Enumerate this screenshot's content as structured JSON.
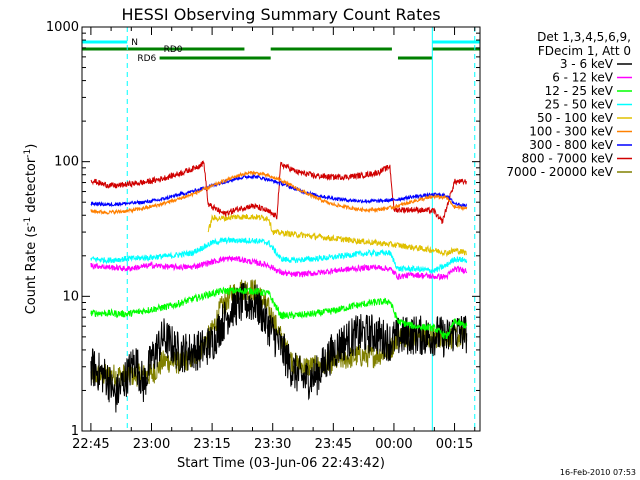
{
  "chart_data": {
    "type": "line",
    "title": "HESSI Observing Summary Count Rates",
    "xlabel": "Start Time (03-Jun-06 22:43:42)",
    "ylabel_main": "Count Rate (s",
    "ylabel_sup1": "-1",
    "ylabel_mid": " detector",
    "ylabel_sup2": "-1",
    "ylabel_end": ")",
    "yscale": "log",
    "ylim": [
      1,
      1000
    ],
    "xlim_minutes": [
      -2.2,
      96.3
    ],
    "x_tick_labels": [
      "22:45",
      "23:00",
      "23:15",
      "23:30",
      "23:45",
      "00:00",
      "00:15"
    ],
    "x_tick_minutes": [
      0,
      15,
      30,
      45,
      60,
      75,
      90
    ],
    "y_tick_labels": [
      "1",
      "10",
      "100",
      "1000"
    ],
    "y_tick_values": [
      1,
      10,
      100,
      1000
    ],
    "legend_header": [
      "Det 1,3,4,5,6,9,",
      "FDecim 1, Att 0"
    ],
    "legend_position": "right",
    "date_stamp": "16-Feb-2010 07:53",
    "flag_labels": {
      "n": "N",
      "rd0": "RD0",
      "rd6": "RD6"
    },
    "series": [
      {
        "name": "3 - 6 keV",
        "color": "#000000",
        "values": [
          [
            0,
            3
          ],
          [
            4,
            2.5
          ],
          [
            6,
            1.8
          ],
          [
            9,
            2.6
          ],
          [
            11,
            3.4
          ],
          [
            13,
            2.2
          ],
          [
            15,
            3.4
          ],
          [
            18,
            5
          ],
          [
            22,
            3.8
          ],
          [
            27,
            4
          ],
          [
            30,
            4.5
          ],
          [
            32,
            6
          ],
          [
            35,
            8.2
          ],
          [
            38,
            9
          ],
          [
            41,
            8.8
          ],
          [
            44,
            6
          ],
          [
            47,
            4.2
          ],
          [
            50,
            2.8
          ],
          [
            53,
            2.4
          ],
          [
            56,
            2.6
          ],
          [
            59,
            3.6
          ],
          [
            62,
            4.5
          ],
          [
            66,
            5.2
          ],
          [
            70,
            5.3
          ],
          [
            74,
            4.6
          ],
          [
            76,
            5
          ],
          [
            80,
            5.2
          ],
          [
            84,
            5
          ],
          [
            86,
            5.2
          ],
          [
            88,
            4.8
          ],
          [
            90,
            5.5
          ],
          [
            93,
            5.3
          ]
        ]
      },
      {
        "name": "6 - 12 keV",
        "color": "#ff00ff",
        "values": [
          [
            0,
            17
          ],
          [
            4,
            16.5
          ],
          [
            9,
            16
          ],
          [
            15,
            17
          ],
          [
            20,
            16.5
          ],
          [
            25,
            16.5
          ],
          [
            30,
            18
          ],
          [
            33,
            19
          ],
          [
            36,
            19
          ],
          [
            40,
            18
          ],
          [
            44,
            17
          ],
          [
            47,
            15
          ],
          [
            50,
            14.5
          ],
          [
            55,
            14.8
          ],
          [
            60,
            15.5
          ],
          [
            65,
            16
          ],
          [
            70,
            16.5
          ],
          [
            74,
            16
          ],
          [
            76,
            14
          ],
          [
            80,
            14.5
          ],
          [
            85,
            14
          ],
          [
            88,
            14
          ],
          [
            90,
            16
          ],
          [
            93,
            15.5
          ]
        ]
      },
      {
        "name": "12 - 25 keV",
        "color": "#00ff00",
        "values": [
          [
            0,
            7.5
          ],
          [
            4,
            7.5
          ],
          [
            9,
            7.4
          ],
          [
            15,
            8
          ],
          [
            20,
            8.5
          ],
          [
            25,
            9.5
          ],
          [
            30,
            10.5
          ],
          [
            33,
            11
          ],
          [
            36,
            11
          ],
          [
            40,
            11
          ],
          [
            44,
            10.5
          ],
          [
            47,
            7.2
          ],
          [
            50,
            7.2
          ],
          [
            55,
            7.4
          ],
          [
            60,
            7.8
          ],
          [
            65,
            8.5
          ],
          [
            70,
            9
          ],
          [
            74,
            9.2
          ],
          [
            76,
            6.5
          ],
          [
            80,
            6
          ],
          [
            85,
            5.8
          ],
          [
            88,
            5
          ],
          [
            90,
            6.5
          ],
          [
            93,
            6
          ]
        ]
      },
      {
        "name": "25 - 50 keV",
        "color": "#00ffff",
        "values": [
          [
            0,
            19
          ],
          [
            4,
            18.5
          ],
          [
            9,
            19
          ],
          [
            15,
            19.5
          ],
          [
            20,
            20
          ],
          [
            25,
            21
          ],
          [
            30,
            25
          ],
          [
            33,
            26
          ],
          [
            36,
            26
          ],
          [
            40,
            26
          ],
          [
            44,
            25
          ],
          [
            47,
            19
          ],
          [
            50,
            18.5
          ],
          [
            55,
            19
          ],
          [
            60,
            19.5
          ],
          [
            65,
            20.5
          ],
          [
            70,
            21
          ],
          [
            74,
            21
          ],
          [
            76,
            16
          ],
          [
            80,
            16
          ],
          [
            85,
            15.5
          ],
          [
            88,
            17
          ],
          [
            90,
            19
          ],
          [
            93,
            18.5
          ]
        ]
      },
      {
        "name": "50 - 100 keV",
        "color": "#e0c000",
        "values": [
          [
            29,
            30
          ],
          [
            30,
            38
          ],
          [
            33,
            38
          ],
          [
            36,
            39
          ],
          [
            40,
            39
          ],
          [
            44,
            38
          ],
          [
            45,
            30
          ],
          [
            76,
            24
          ],
          [
            80,
            23
          ],
          [
            85,
            22
          ],
          [
            88,
            21
          ],
          [
            90,
            22
          ],
          [
            93,
            21
          ]
        ]
      },
      {
        "name": "100 - 300 keV",
        "color": "#ff8000",
        "values": [
          [
            0,
            43
          ],
          [
            4,
            42
          ],
          [
            9,
            43
          ],
          [
            13,
            45
          ],
          [
            17,
            48
          ],
          [
            21,
            52
          ],
          [
            25,
            57
          ],
          [
            29,
            64
          ],
          [
            33,
            72
          ],
          [
            37,
            80
          ],
          [
            40,
            83
          ],
          [
            43,
            80
          ],
          [
            47,
            73
          ],
          [
            51,
            63
          ],
          [
            55,
            55
          ],
          [
            59,
            49
          ],
          [
            63,
            46
          ],
          [
            67,
            44
          ],
          [
            71,
            44
          ],
          [
            75,
            46
          ],
          [
            80,
            51
          ],
          [
            85,
            55
          ],
          [
            88,
            54
          ],
          [
            90,
            46
          ],
          [
            93,
            45
          ]
        ]
      },
      {
        "name": "300 - 800 keV",
        "color": "#0000ff",
        "values": [
          [
            0,
            49
          ],
          [
            4,
            48
          ],
          [
            9,
            49
          ],
          [
            13,
            50
          ],
          [
            17,
            52
          ],
          [
            21,
            56
          ],
          [
            25,
            60
          ],
          [
            29,
            65
          ],
          [
            33,
            71
          ],
          [
            37,
            76
          ],
          [
            40,
            78
          ],
          [
            43,
            75
          ],
          [
            47,
            69
          ],
          [
            51,
            62
          ],
          [
            55,
            57
          ],
          [
            59,
            54
          ],
          [
            63,
            52
          ],
          [
            67,
            51
          ],
          [
            71,
            51
          ],
          [
            75,
            52
          ],
          [
            80,
            55
          ],
          [
            85,
            57
          ],
          [
            88,
            56
          ],
          [
            90,
            49
          ],
          [
            93,
            47
          ]
        ]
      },
      {
        "name": "800 - 7000 keV",
        "color": "#d00000",
        "values": [
          [
            0,
            73
          ],
          [
            3,
            68
          ],
          [
            6,
            66
          ],
          [
            9,
            68
          ],
          [
            13,
            70
          ],
          [
            17,
            74
          ],
          [
            21,
            80
          ],
          [
            25,
            88
          ],
          [
            28,
            98
          ],
          [
            29,
            48
          ],
          [
            33,
            41
          ],
          [
            37,
            45
          ],
          [
            40,
            47
          ],
          [
            43,
            44
          ],
          [
            46,
            39
          ],
          [
            47,
            96
          ],
          [
            51,
            84
          ],
          [
            55,
            79
          ],
          [
            59,
            77
          ],
          [
            63,
            77
          ],
          [
            67,
            79
          ],
          [
            71,
            83
          ],
          [
            74,
            92
          ],
          [
            75,
            44
          ],
          [
            80,
            44
          ],
          [
            85,
            43
          ],
          [
            86,
            38
          ],
          [
            87,
            36
          ],
          [
            90,
            71
          ],
          [
            93,
            71
          ]
        ]
      },
      {
        "name": "7000 - 20000 keV",
        "color": "#808000",
        "values": [
          [
            0,
            2.6
          ],
          [
            9,
            2.6
          ],
          [
            15,
            2.6
          ],
          [
            18,
            3.3
          ],
          [
            22,
            3.2
          ],
          [
            26,
            3.6
          ],
          [
            30,
            5.5
          ],
          [
            32,
            8
          ],
          [
            35,
            10.5
          ],
          [
            38,
            11.5
          ],
          [
            41,
            11
          ],
          [
            44,
            8
          ],
          [
            47,
            5
          ],
          [
            50,
            3.2
          ],
          [
            53,
            3
          ],
          [
            56,
            3
          ],
          [
            59,
            3.2
          ],
          [
            62,
            3.4
          ],
          [
            66,
            3.6
          ],
          [
            70,
            3.6
          ],
          [
            74,
            4
          ],
          [
            76,
            5
          ],
          [
            80,
            5.2
          ],
          [
            84,
            5
          ],
          [
            88,
            5
          ],
          [
            90,
            5
          ],
          [
            93,
            5
          ]
        ]
      }
    ],
    "attenuator_markers": [
      {
        "label_key": "n",
        "segments": [
          [
            -2.2,
            9.0
          ],
          [
            84.5,
            96.3
          ]
        ],
        "color": "#00ffff",
        "level": "top"
      },
      {
        "label_key": "rd0",
        "segments": [
          [
            -2.2,
            38.0
          ],
          [
            44.5,
            74.5
          ],
          [
            84.5,
            96.3
          ]
        ],
        "color": "#008000",
        "level": "upper"
      },
      {
        "label_key": "rd6",
        "segments": [
          [
            17.0,
            44.5
          ],
          [
            76.0,
            84.5
          ]
        ],
        "color": "#008000",
        "level": "lower"
      }
    ],
    "vertical_markers": [
      {
        "x": 9.0,
        "color": "#00ffff",
        "style": "dashed"
      },
      {
        "x": 84.5,
        "color": "#00ffff",
        "style": "solid"
      },
      {
        "x": 95.0,
        "color": "#00ffff",
        "style": "dashed"
      }
    ]
  }
}
